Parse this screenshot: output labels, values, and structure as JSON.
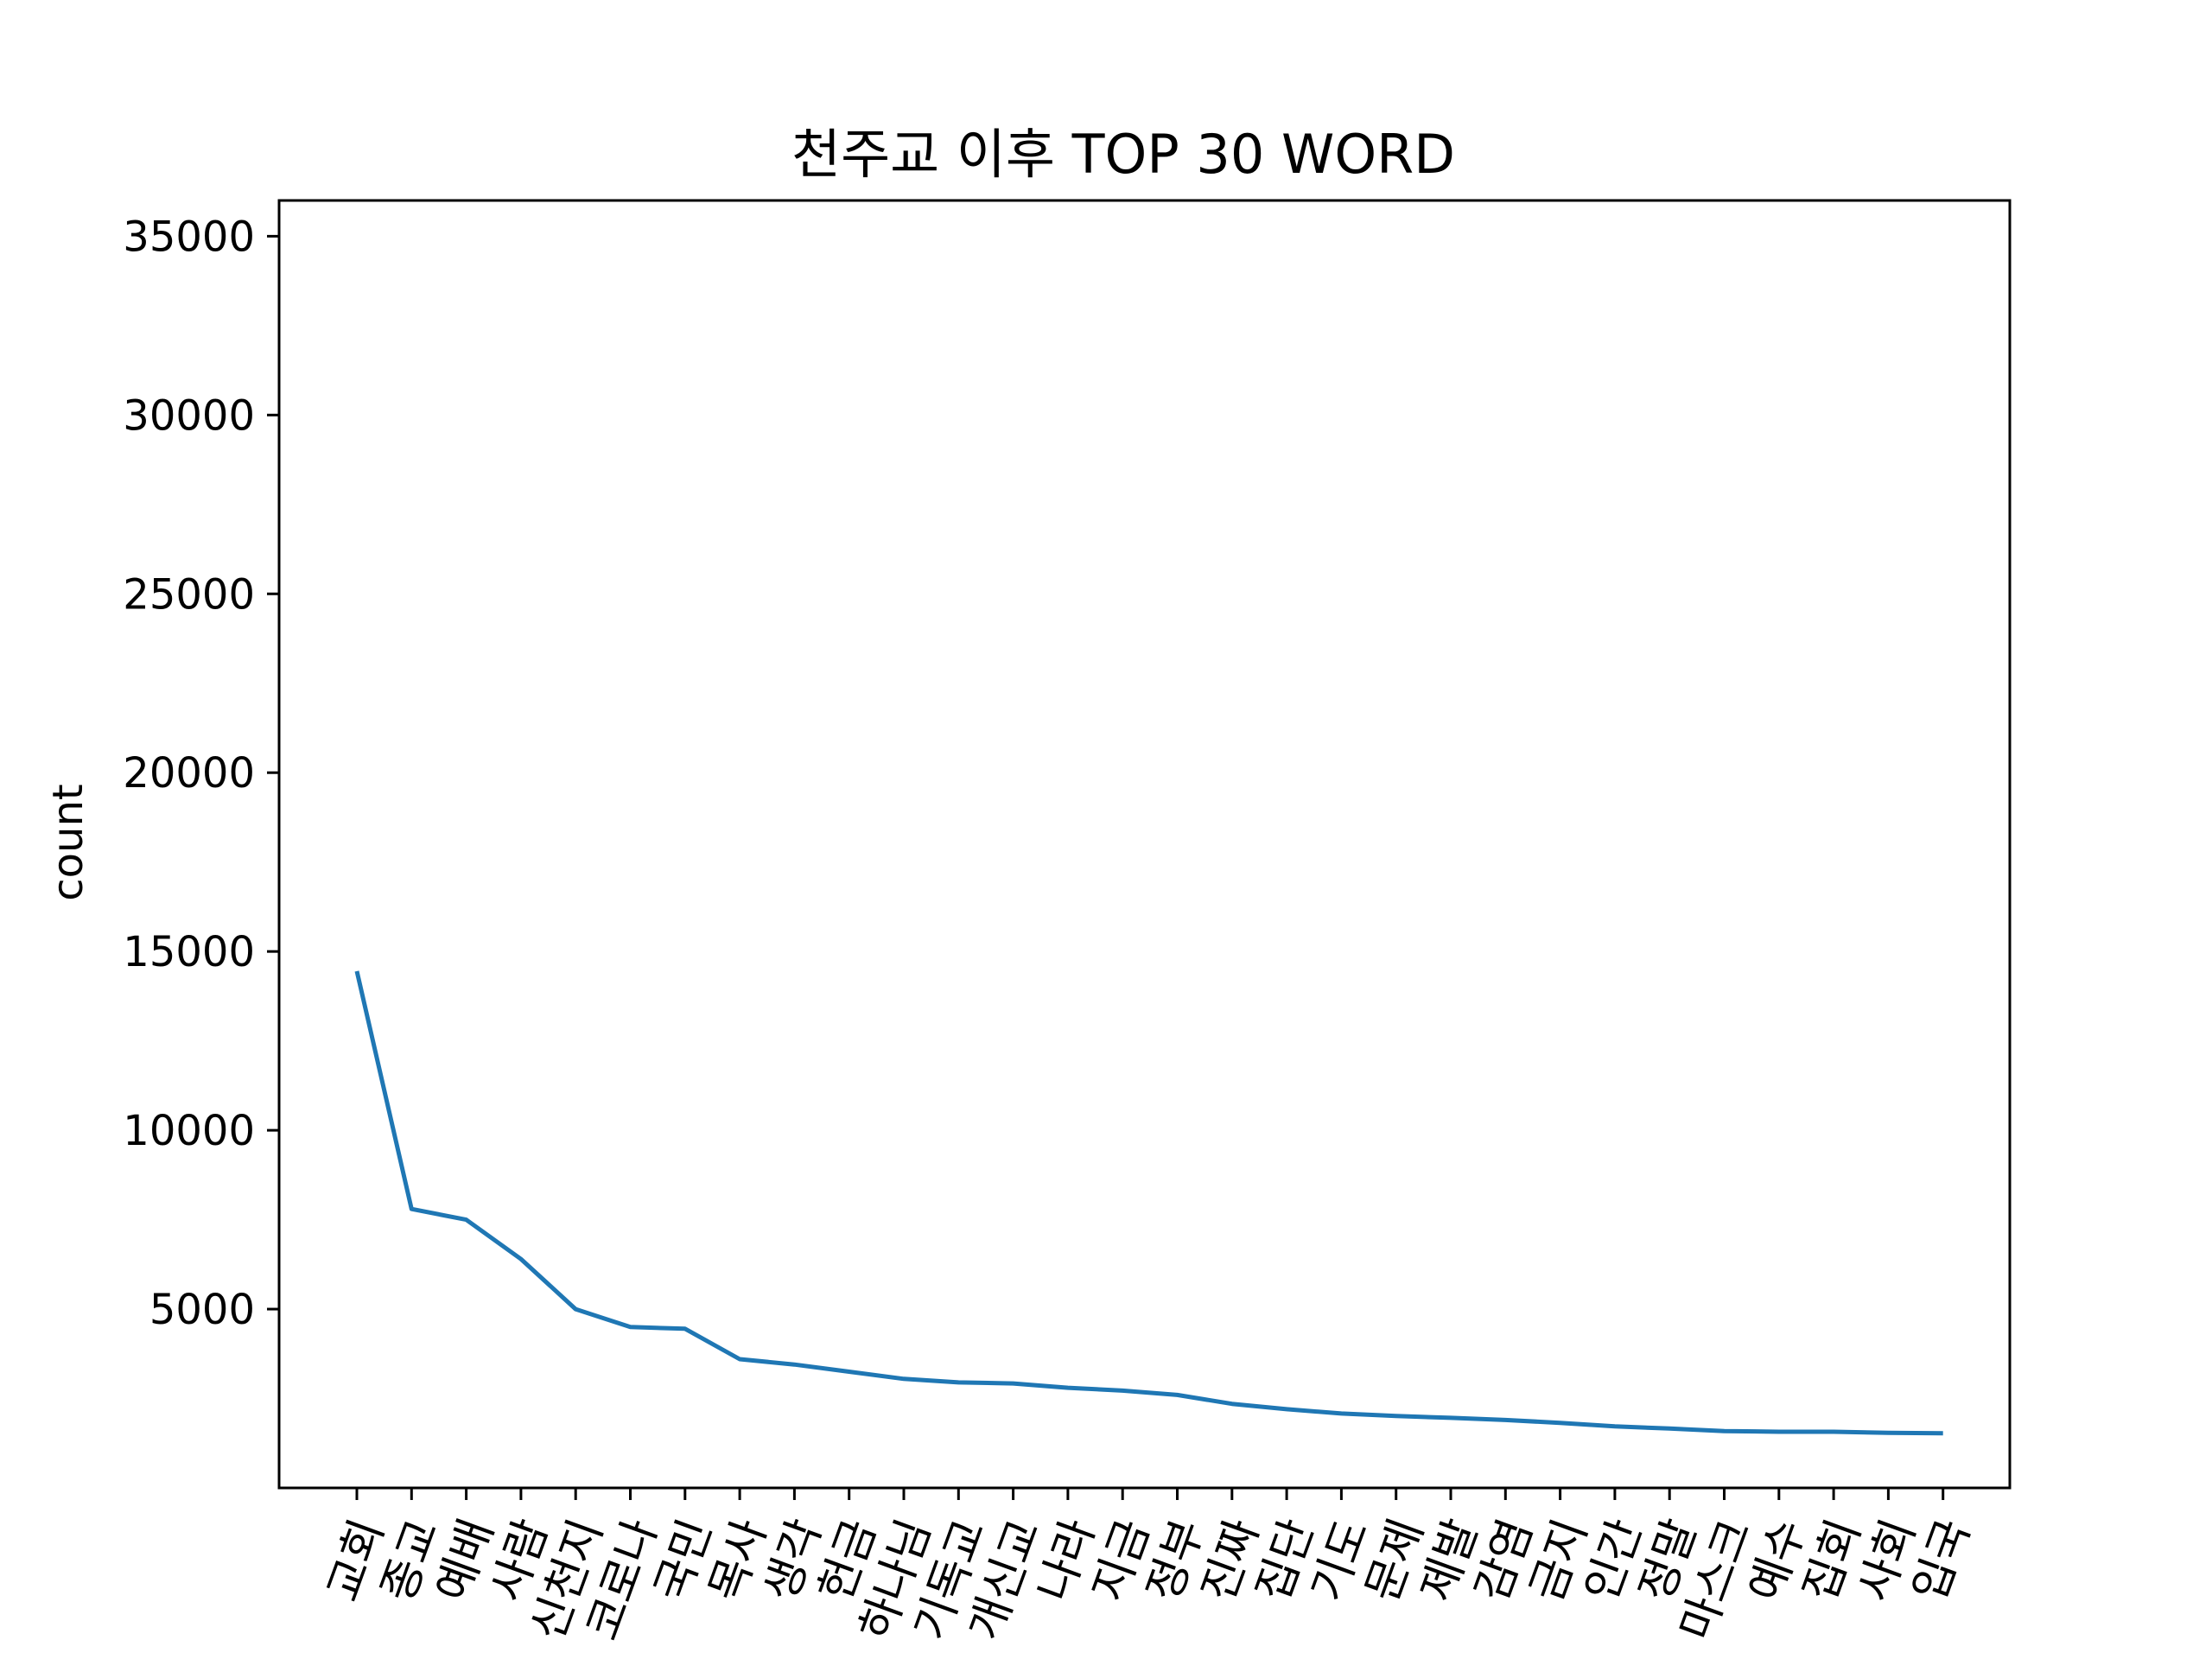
{
  "chart_data": {
    "type": "line",
    "title": "천주교 이후 TOP 30 WORD",
    "xlabel": "",
    "ylabel": "count",
    "ylim": [
      0,
      36000
    ],
    "yticks": [
      5000,
      10000,
      15000,
      20000,
      25000,
      30000,
      35000
    ],
    "ytick_labels": [
      "5000",
      "10000",
      "15000",
      "20000",
      "25000",
      "30000",
      "35000"
    ],
    "categories": [
      "교회",
      "종교",
      "예배",
      "사람",
      "신천지",
      "코로나",
      "국민",
      "목사",
      "생각",
      "헌금",
      "하나님",
      "기독교",
      "개신교",
      "나라",
      "지금",
      "정부",
      "진짜",
      "집단",
      "기도",
      "문제",
      "제발",
      "감염",
      "금지",
      "인간",
      "정말",
      "마스크",
      "예수",
      "집회",
      "사회",
      "입국"
    ],
    "series": [
      {
        "color": "#1f77b4",
        "values": [
          14450,
          7800,
          7500,
          6400,
          5000,
          4500,
          4450,
          3600,
          3450,
          3250,
          3050,
          2950,
          2920,
          2800,
          2720,
          2600,
          2350,
          2200,
          2080,
          2010,
          1960,
          1900,
          1820,
          1720,
          1660,
          1590,
          1570,
          1570,
          1540,
          1530
        ]
      }
    ],
    "grid": false,
    "legend": "none",
    "xtick_rotation_deg": -70
  }
}
